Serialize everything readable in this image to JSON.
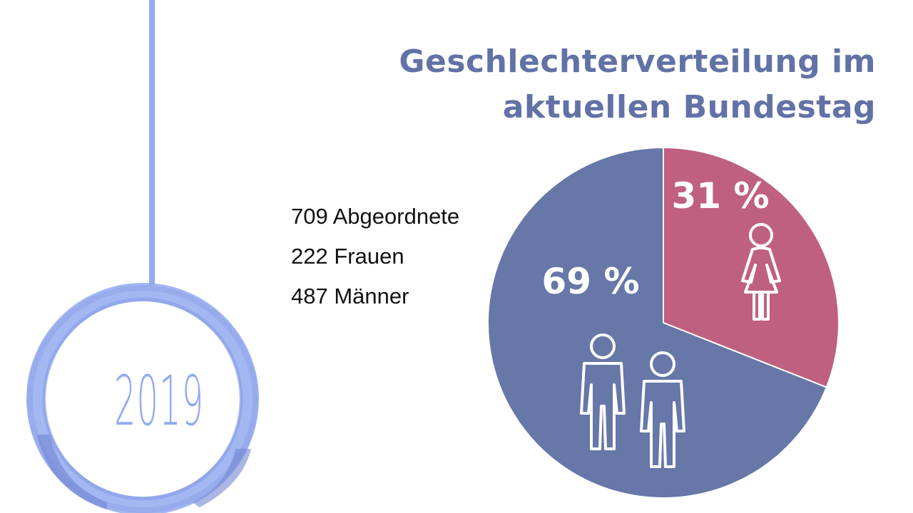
{
  "year": "2019",
  "title": {
    "line1": "Geschlechterverteilung im",
    "line2": "aktuellen Bundestag"
  },
  "stats": {
    "total": "709 Abgeordnete",
    "women": "222 Frauen",
    "men": "487 Männer"
  },
  "colors": {
    "timeline": "#93aaf0",
    "title": "#6272a6",
    "men_slice": "#6677a8",
    "women_slice": "#c06080"
  },
  "chart_data": {
    "type": "pie",
    "slices": [
      {
        "key": "women",
        "label": "31 %",
        "value": 31,
        "count": 222,
        "color": "#c06080",
        "icon": "female-figure-icon"
      },
      {
        "key": "men",
        "label": "69 %",
        "value": 69,
        "count": 487,
        "color": "#6677a8",
        "icon": "male-figures-icon"
      }
    ]
  }
}
